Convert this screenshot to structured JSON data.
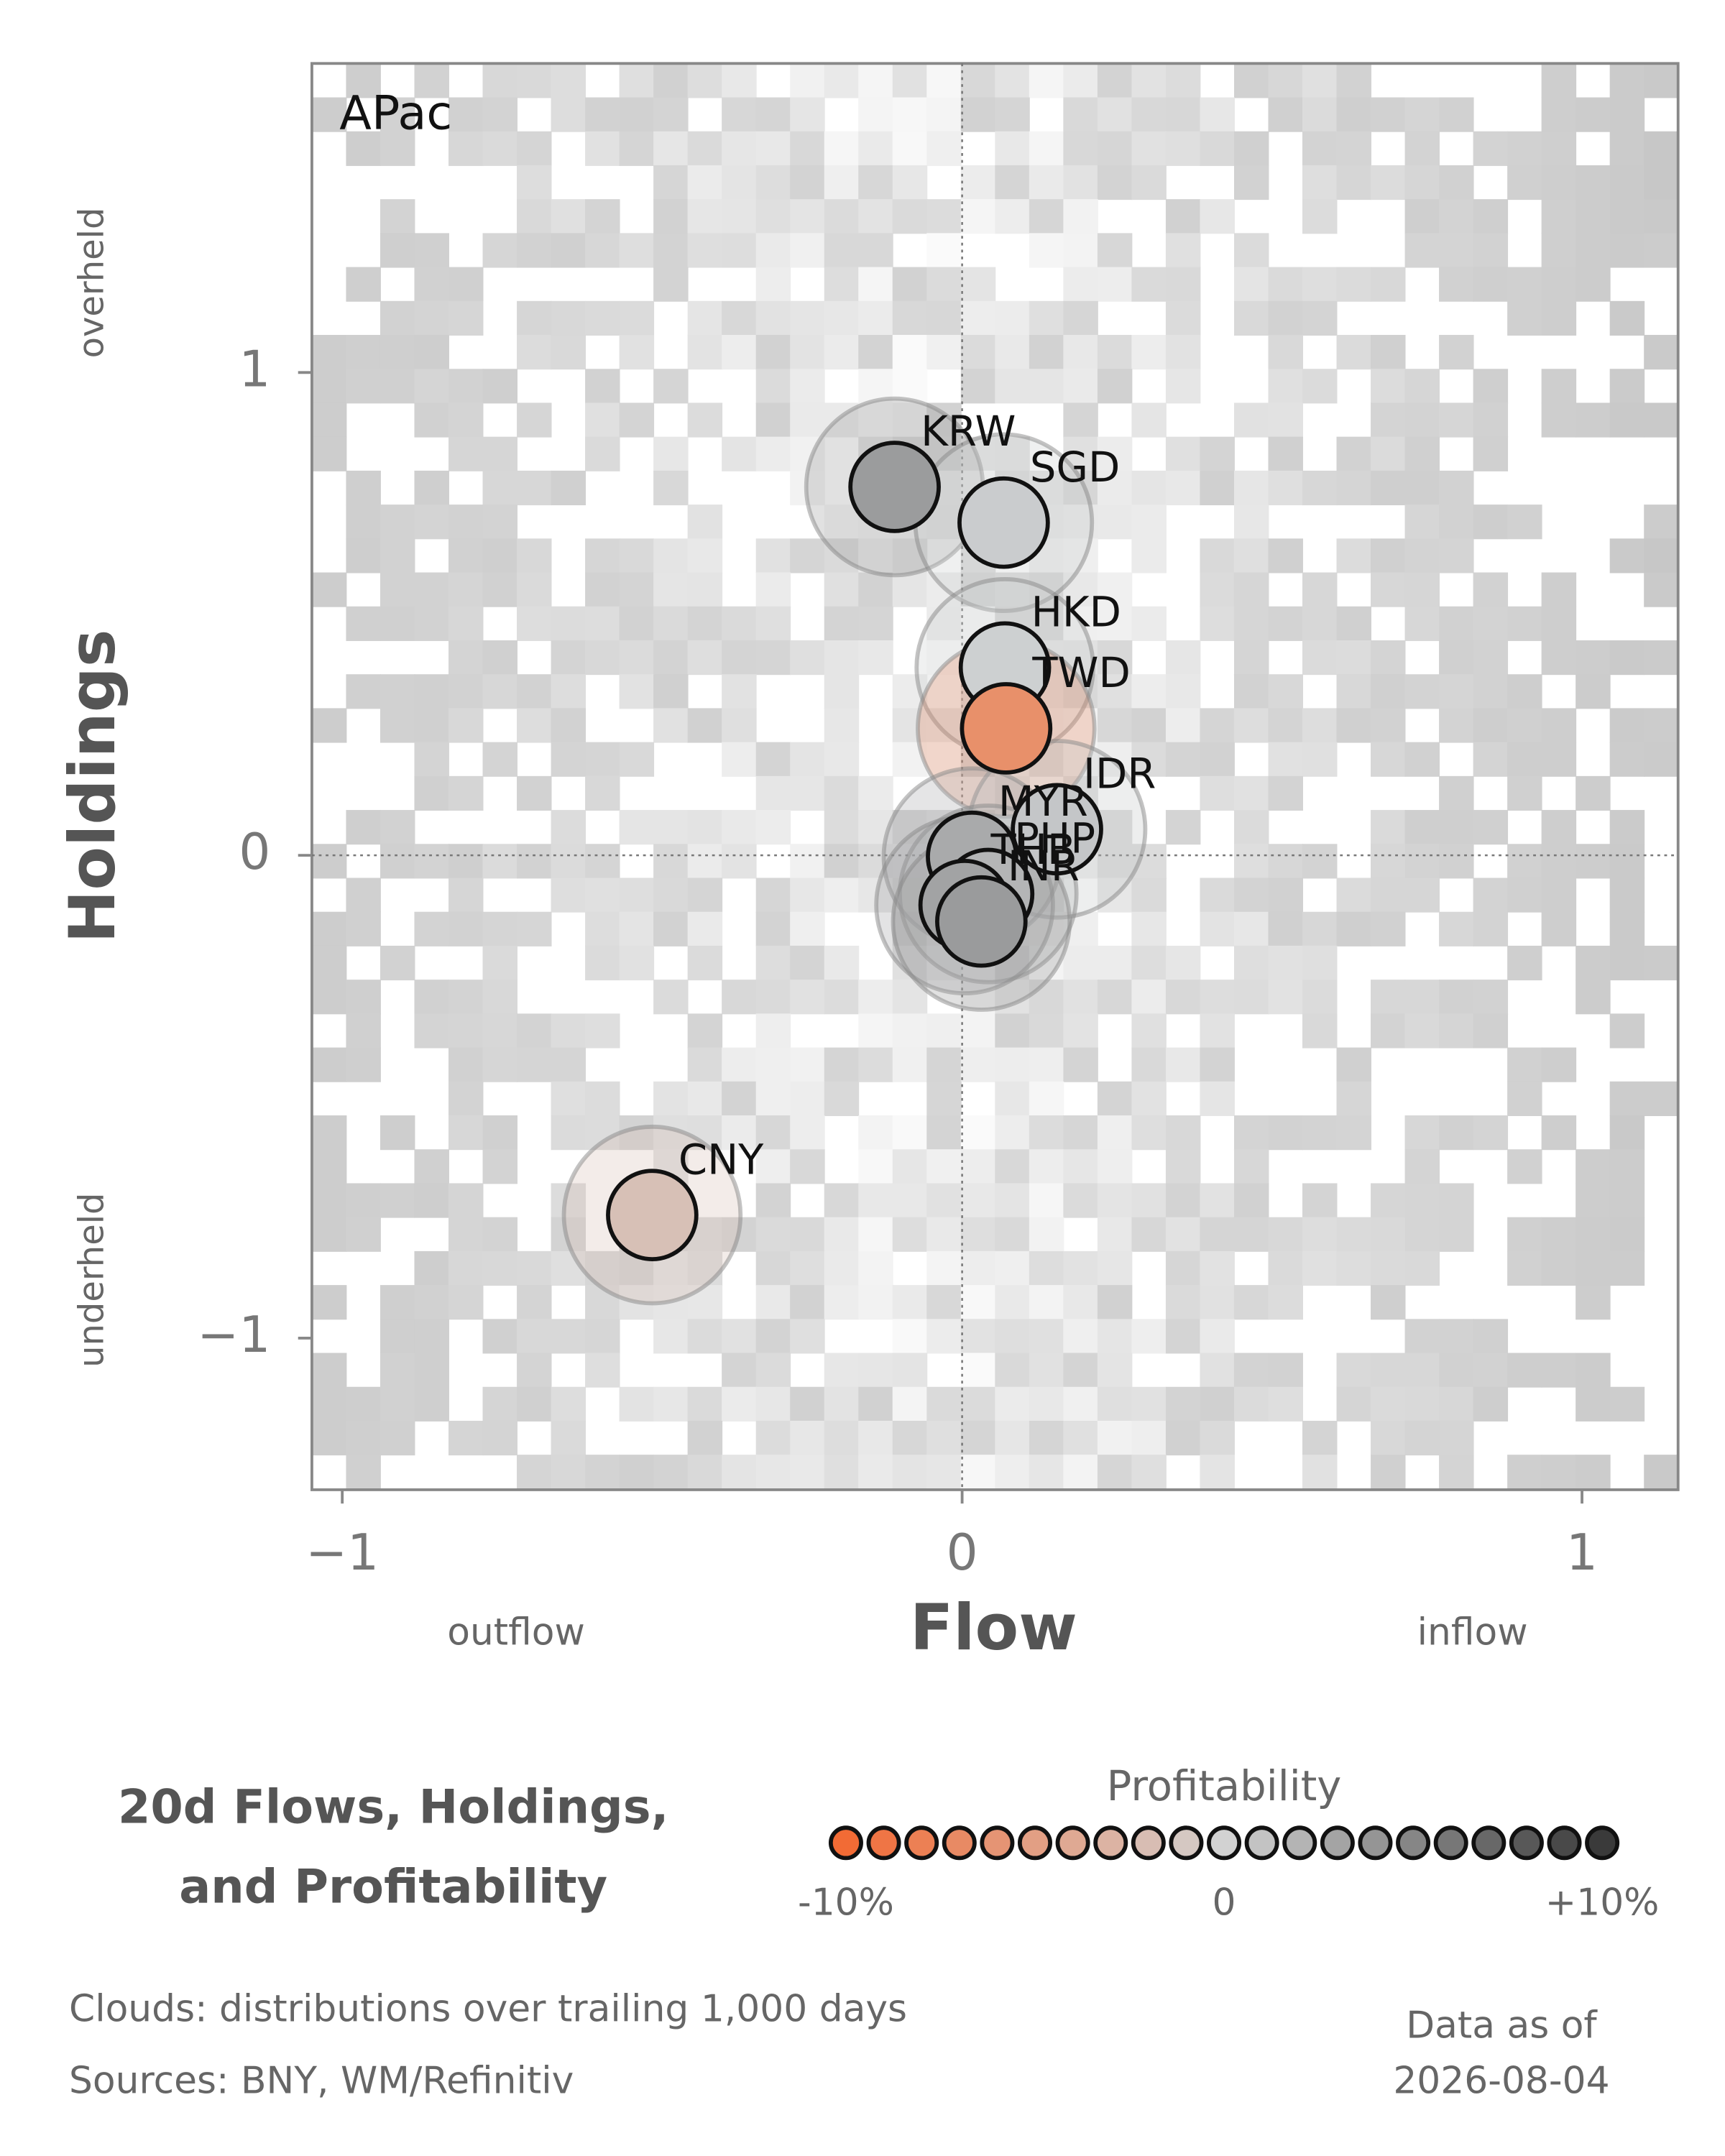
{
  "chart_data": {
    "type": "scatter",
    "panel_label": "APac",
    "x_label": "Flow",
    "y_label": "Holdings",
    "x_low_label": "outflow",
    "x_high_label": "inflow",
    "y_high_label": "overheld",
    "y_low_label": "underheld",
    "xlim": [
      -1.049,
      1.155
    ],
    "ylim": [
      -1.314,
      1.64
    ],
    "xticks": [
      {
        "value": -1,
        "label": "−1"
      },
      0,
      1
    ],
    "yticks": [
      {
        "value": -1,
        "label": "−1"
      },
      0,
      1
    ],
    "zero_lines": true,
    "points": [
      {
        "name": "KRW",
        "color": "#9b9c9d",
        "x": -0.109,
        "y": 0.763
      },
      {
        "name": "SGD",
        "color": "#caccce",
        "x": 0.067,
        "y": 0.689
      },
      {
        "name": "HKD",
        "color": "#cdd0d1",
        "x": 0.069,
        "y": 0.389
      },
      {
        "name": "TWD",
        "color": "#e8906a",
        "x": 0.071,
        "y": 0.263
      },
      {
        "name": "IDR",
        "color": "#c4c6c8",
        "x": 0.153,
        "y": 0.054
      },
      {
        "name": "MYR",
        "color": "#a9aaab",
        "x": 0.016,
        "y": -0.003
      },
      {
        "name": "PHP",
        "color": "#b4b5b6",
        "x": 0.042,
        "y": -0.08
      },
      {
        "name": "THB",
        "color": "#a2a3a4",
        "x": 0.004,
        "y": -0.103
      },
      {
        "name": "INR",
        "color": "#9a9b9c",
        "x": 0.031,
        "y": -0.137
      },
      {
        "name": "CNY",
        "color": "#d7c0b6",
        "x": -0.5,
        "y": -0.745
      }
    ],
    "title": [
      "20d Flows, Holdings,",
      "and Profitability"
    ],
    "legend": {
      "title": "Profitability",
      "ticks": [
        "-10%",
        "0",
        "+10%"
      ],
      "colors": [
        "#f26b35",
        "#d2d2d2",
        "#3a3a3a"
      ],
      "count": 21
    },
    "footnotes": [
      "Clouds:  distributions over trailing 1,000 days",
      "Sources:  BNY, WM/Refinitiv"
    ],
    "date_label": "Data as of",
    "date": "2026-08-04"
  }
}
